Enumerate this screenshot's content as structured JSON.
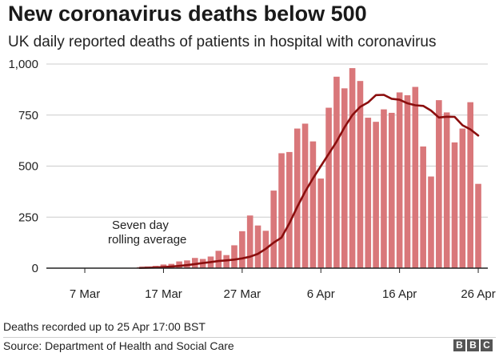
{
  "chart_data": {
    "type": "bar",
    "title": "New coronavirus deaths below 500",
    "subtitle": "UK daily reported deaths of patients in hospital with coronavirus",
    "x_tick_labels": [
      "7 Mar",
      "17 Mar",
      "27 Mar",
      "6 Apr",
      "16 Apr",
      "26 Apr"
    ],
    "y_tick_labels": [
      "0",
      "250",
      "500",
      "750",
      "1,000"
    ],
    "y_ticks": [
      0,
      250,
      500,
      750,
      1000
    ],
    "ylim": [
      0,
      1000
    ],
    "grid": true,
    "x": [
      "1 Mar",
      "2 Mar",
      "3 Mar",
      "4 Mar",
      "5 Mar",
      "6 Mar",
      "7 Mar",
      "8 Mar",
      "9 Mar",
      "10 Mar",
      "11 Mar",
      "12 Mar",
      "13 Mar",
      "14 Mar",
      "15 Mar",
      "16 Mar",
      "17 Mar",
      "18 Mar",
      "19 Mar",
      "20 Mar",
      "21 Mar",
      "22 Mar",
      "23 Mar",
      "24 Mar",
      "25 Mar",
      "26 Mar",
      "27 Mar",
      "28 Mar",
      "29 Mar",
      "30 Mar",
      "31 Mar",
      "1 Apr",
      "2 Apr",
      "3 Apr",
      "4 Apr",
      "5 Apr",
      "6 Apr",
      "7 Apr",
      "8 Apr",
      "9 Apr",
      "10 Apr",
      "11 Apr",
      "12 Apr",
      "13 Apr",
      "14 Apr",
      "15 Apr",
      "16 Apr",
      "17 Apr",
      "18 Apr",
      "19 Apr",
      "20 Apr",
      "21 Apr",
      "22 Apr",
      "23 Apr",
      "24 Apr",
      "25 Apr",
      "26 Apr"
    ],
    "series": [
      {
        "type": "bar",
        "color": "#d9777a",
        "values": [
          0,
          0,
          0,
          0,
          0,
          0,
          0,
          0,
          0,
          0,
          0,
          2,
          1,
          5,
          8,
          11,
          18,
          21,
          33,
          38,
          50,
          45,
          57,
          85,
          64,
          112,
          181,
          258,
          209,
          183,
          380,
          563,
          569,
          684,
          708,
          621,
          439,
          786,
          938,
          881,
          980,
          917,
          737,
          717,
          778,
          761,
          861,
          847,
          888,
          596,
          449,
          823,
          763,
          616,
          684,
          813,
          413
        ]
      },
      {
        "type": "line",
        "name": "Seven day rolling average",
        "color": "#8b0e0e",
        "values": [
          null,
          null,
          null,
          null,
          null,
          null,
          null,
          null,
          null,
          null,
          null,
          null,
          null,
          1,
          2,
          3,
          5,
          8,
          11,
          15,
          20,
          25,
          30,
          35,
          38,
          42,
          48,
          56,
          70,
          95,
          125,
          150,
          220,
          300,
          375,
          440,
          500,
          560,
          620,
          690,
          750,
          790,
          812,
          848,
          849,
          830,
          825,
          808,
          798,
          795,
          772,
          738,
          742,
          741,
          700,
          680,
          650
        ]
      }
    ],
    "annotation": [
      "Seven day",
      "rolling average"
    ]
  },
  "footer": {
    "note": "Deaths recorded up to 25 Apr 17:00 BST",
    "source": "Source: Department of Health and Social Care",
    "logo": [
      "B",
      "B",
      "C"
    ]
  }
}
